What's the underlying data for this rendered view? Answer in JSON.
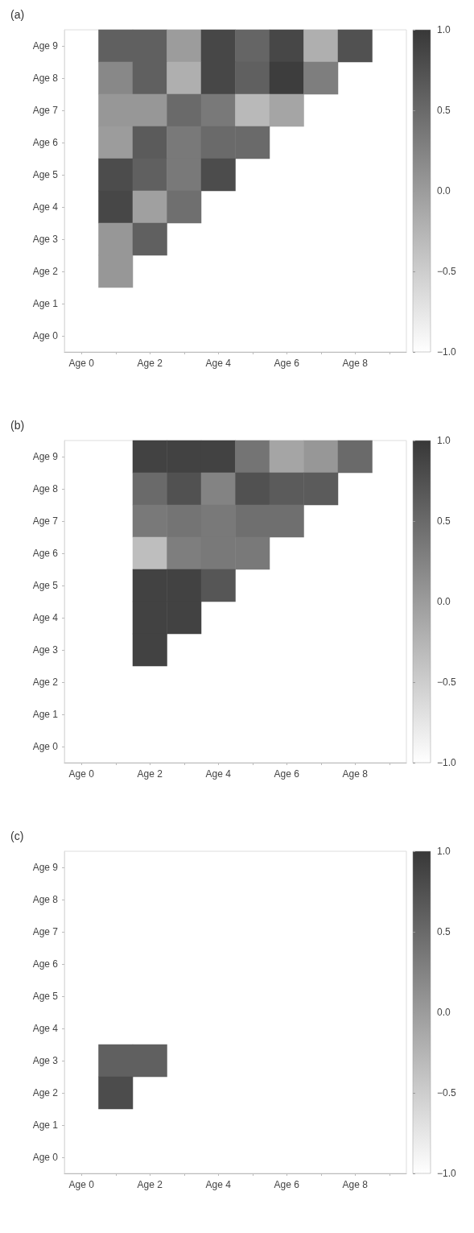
{
  "chart_data": [
    {
      "type": "heatmap",
      "title": "(a)",
      "categories": [
        "Age 0",
        null,
        "Age 2",
        null,
        "Age 4",
        null,
        "Age 6",
        null,
        "Age 8",
        null
      ],
      "y_categories": [
        "Age 9",
        "Age 8",
        "Age 7",
        "Age 6",
        "Age 5",
        "Age 4",
        "Age 3",
        "Age 2",
        "Age 1",
        "Age 0"
      ],
      "cells": [
        [
          null,
          0.6,
          0.6,
          0.0,
          0.85,
          0.55,
          0.85,
          -0.2,
          0.75,
          null
        ],
        [
          null,
          0.2,
          0.6,
          -0.2,
          0.85,
          0.6,
          0.95,
          0.3,
          null,
          null
        ],
        [
          null,
          0.05,
          0.05,
          0.5,
          0.35,
          -0.3,
          -0.1,
          null,
          null,
          null
        ],
        [
          null,
          0.0,
          0.65,
          0.35,
          0.5,
          0.5,
          null,
          null,
          null,
          null
        ],
        [
          null,
          0.8,
          0.6,
          0.35,
          0.8,
          null,
          null,
          null,
          null,
          null
        ],
        [
          null,
          0.85,
          -0.05,
          0.45,
          null,
          null,
          null,
          null,
          null,
          null
        ],
        [
          null,
          0.05,
          0.6,
          null,
          null,
          null,
          null,
          null,
          null,
          null
        ],
        [
          null,
          0.05,
          null,
          null,
          null,
          null,
          null,
          null,
          null,
          null
        ],
        [
          null,
          null,
          null,
          null,
          null,
          null,
          null,
          null,
          null,
          null
        ],
        [
          null,
          null,
          null,
          null,
          null,
          null,
          null,
          null,
          null,
          null
        ]
      ],
      "clim": [
        -1,
        1
      ],
      "cticks": [
        {
          "value": -1,
          "label": "−1.0"
        },
        {
          "value": -0.5,
          "label": "−0.5"
        },
        {
          "value": 0,
          "label": "0.0"
        },
        {
          "value": 0.5,
          "label": "0.5"
        },
        {
          "value": 1,
          "label": "1.0"
        }
      ]
    },
    {
      "type": "heatmap",
      "title": "(b)",
      "categories": [
        "Age 0",
        null,
        "Age 2",
        null,
        "Age 4",
        null,
        "Age 6",
        null,
        "Age 8",
        null
      ],
      "y_categories": [
        "Age 9",
        "Age 8",
        "Age 7",
        "Age 6",
        "Age 5",
        "Age 4",
        "Age 3",
        "Age 2",
        "Age 1",
        "Age 0"
      ],
      "cells": [
        [
          null,
          null,
          0.9,
          0.9,
          0.9,
          0.4,
          -0.1,
          0.05,
          0.5,
          null
        ],
        [
          null,
          null,
          0.5,
          0.75,
          0.25,
          0.75,
          0.65,
          0.65,
          null,
          null
        ],
        [
          null,
          null,
          0.35,
          0.4,
          0.35,
          0.45,
          0.45,
          null,
          null,
          null
        ],
        [
          null,
          null,
          -0.35,
          0.3,
          0.35,
          0.35,
          null,
          null,
          null,
          null
        ],
        [
          null,
          null,
          0.9,
          0.9,
          0.7,
          null,
          null,
          null,
          null,
          null
        ],
        [
          null,
          null,
          0.9,
          0.9,
          null,
          null,
          null,
          null,
          null,
          null
        ],
        [
          null,
          null,
          0.9,
          null,
          null,
          null,
          null,
          null,
          null,
          null
        ],
        [
          null,
          null,
          null,
          null,
          null,
          null,
          null,
          null,
          null,
          null
        ],
        [
          null,
          null,
          null,
          null,
          null,
          null,
          null,
          null,
          null,
          null
        ],
        [
          null,
          null,
          null,
          null,
          null,
          null,
          null,
          null,
          null,
          null
        ]
      ],
      "clim": [
        -1,
        1
      ],
      "cticks": [
        {
          "value": -1,
          "label": "−1.0"
        },
        {
          "value": -0.5,
          "label": "−0.5"
        },
        {
          "value": 0,
          "label": "0.0"
        },
        {
          "value": 0.5,
          "label": "0.5"
        },
        {
          "value": 1,
          "label": "1.0"
        }
      ]
    },
    {
      "type": "heatmap",
      "title": "(c)",
      "categories": [
        "Age 0",
        null,
        "Age 2",
        null,
        "Age 4",
        null,
        "Age 6",
        null,
        "Age 8",
        null
      ],
      "y_categories": [
        "Age 9",
        "Age 8",
        "Age 7",
        "Age 6",
        "Age 5",
        "Age 4",
        "Age 3",
        "Age 2",
        "Age 1",
        "Age 0"
      ],
      "cells": [
        [
          null,
          null,
          null,
          null,
          null,
          null,
          null,
          null,
          null,
          null
        ],
        [
          null,
          null,
          null,
          null,
          null,
          null,
          null,
          null,
          null,
          null
        ],
        [
          null,
          null,
          null,
          null,
          null,
          null,
          null,
          null,
          null,
          null
        ],
        [
          null,
          null,
          null,
          null,
          null,
          null,
          null,
          null,
          null,
          null
        ],
        [
          null,
          null,
          null,
          null,
          null,
          null,
          null,
          null,
          null,
          null
        ],
        [
          null,
          null,
          null,
          null,
          null,
          null,
          null,
          null,
          null,
          null
        ],
        [
          null,
          0.6,
          0.6,
          null,
          null,
          null,
          null,
          null,
          null,
          null
        ],
        [
          null,
          0.8,
          null,
          null,
          null,
          null,
          null,
          null,
          null,
          null
        ],
        [
          null,
          null,
          null,
          null,
          null,
          null,
          null,
          null,
          null,
          null
        ],
        [
          null,
          null,
          null,
          null,
          null,
          null,
          null,
          null,
          null,
          null
        ]
      ],
      "clim": [
        -1,
        1
      ],
      "cticks": [
        {
          "value": -1,
          "label": "−1.0"
        },
        {
          "value": -0.5,
          "label": "−0.5"
        },
        {
          "value": 0,
          "label": "0.0"
        },
        {
          "value": 0.5,
          "label": "0.5"
        },
        {
          "value": 1,
          "label": "1.0"
        }
      ]
    }
  ]
}
